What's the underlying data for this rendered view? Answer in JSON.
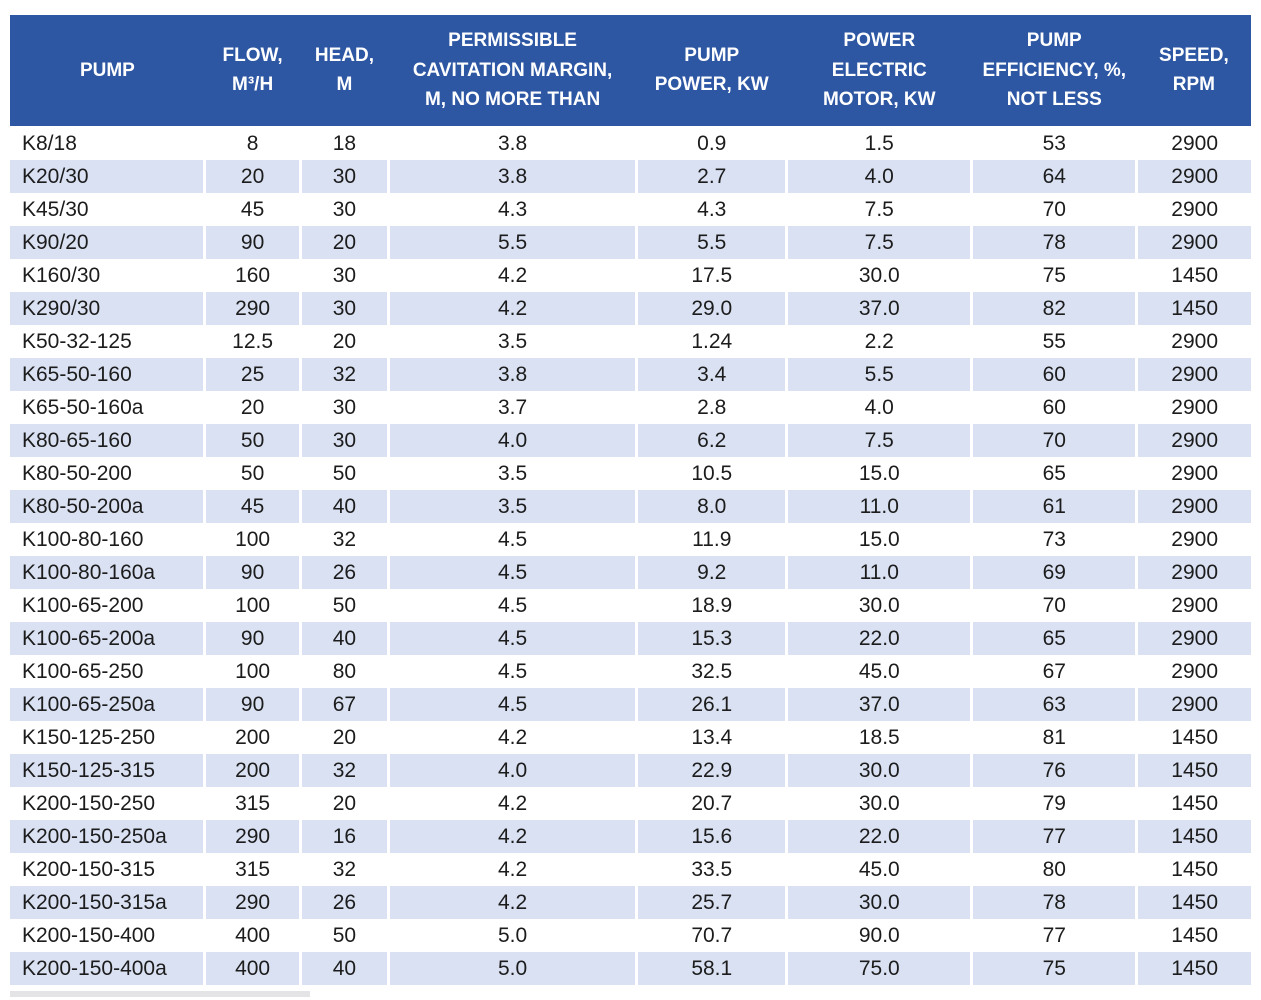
{
  "colors": {
    "header_bg": "#2d56a3",
    "header_text": "#ffffff",
    "row_bg": "#ffffff",
    "row_alt_bg": "#d9e1f2",
    "body_text": "#1c1c1c",
    "separator": "#ffffff"
  },
  "table": {
    "columns": [
      {
        "label": "PUMP",
        "width": "15.7%"
      },
      {
        "label": "FLOW,\nM³/H",
        "width": "7.7%"
      },
      {
        "label": "HEAD,\nM",
        "width": "7.1%"
      },
      {
        "label": "PERMISSIBLE\nCAVITATION MARGIN,\nM, NO MORE THAN",
        "width": "20.0%"
      },
      {
        "label": "PUMP\nPOWER, KW",
        "width": "12.1%"
      },
      {
        "label": "POWER\nELECTRIC\nMOTOR, KW",
        "width": "14.9%"
      },
      {
        "label": "PUMP\nEFFICIENCY, %,\nNOT LESS",
        "width": "13.3%"
      },
      {
        "label": "SPEED,\nRPM",
        "width": "9.2%"
      }
    ],
    "rows": [
      [
        "K8/18",
        "8",
        "18",
        "3.8",
        "0.9",
        "1.5",
        "53",
        "2900"
      ],
      [
        "K20/30",
        "20",
        "30",
        "3.8",
        "2.7",
        "4.0",
        "64",
        "2900"
      ],
      [
        "K45/30",
        "45",
        "30",
        "4.3",
        "4.3",
        "7.5",
        "70",
        "2900"
      ],
      [
        "K90/20",
        "90",
        "20",
        "5.5",
        "5.5",
        "7.5",
        "78",
        "2900"
      ],
      [
        "K160/30",
        "160",
        "30",
        "4.2",
        "17.5",
        "30.0",
        "75",
        "1450"
      ],
      [
        "K290/30",
        "290",
        "30",
        "4.2",
        "29.0",
        "37.0",
        "82",
        "1450"
      ],
      [
        "K50-32-125",
        "12.5",
        "20",
        "3.5",
        "1.24",
        "2.2",
        "55",
        "2900"
      ],
      [
        "K65-50-160",
        "25",
        "32",
        "3.8",
        "3.4",
        "5.5",
        "60",
        "2900"
      ],
      [
        "K65-50-160a",
        "20",
        "30",
        "3.7",
        "2.8",
        "4.0",
        "60",
        "2900"
      ],
      [
        "K80-65-160",
        "50",
        "30",
        "4.0",
        "6.2",
        "7.5",
        "70",
        "2900"
      ],
      [
        "K80-50-200",
        "50",
        "50",
        "3.5",
        "10.5",
        "15.0",
        "65",
        "2900"
      ],
      [
        "K80-50-200a",
        "45",
        "40",
        "3.5",
        "8.0",
        "11.0",
        "61",
        "2900"
      ],
      [
        "K100-80-160",
        "100",
        "32",
        "4.5",
        "11.9",
        "15.0",
        "73",
        "2900"
      ],
      [
        "K100-80-160a",
        "90",
        "26",
        "4.5",
        "9.2",
        "11.0",
        "69",
        "2900"
      ],
      [
        "K100-65-200",
        "100",
        "50",
        "4.5",
        "18.9",
        "30.0",
        "70",
        "2900"
      ],
      [
        "K100-65-200a",
        "90",
        "40",
        "4.5",
        "15.3",
        "22.0",
        "65",
        "2900"
      ],
      [
        "K100-65-250",
        "100",
        "80",
        "4.5",
        "32.5",
        "45.0",
        "67",
        "2900"
      ],
      [
        "K100-65-250a",
        "90",
        "67",
        "4.5",
        "26.1",
        "37.0",
        "63",
        "2900"
      ],
      [
        "K150-125-250",
        "200",
        "20",
        "4.2",
        "13.4",
        "18.5",
        "81",
        "1450"
      ],
      [
        "K150-125-315",
        "200",
        "32",
        "4.0",
        "22.9",
        "30.0",
        "76",
        "1450"
      ],
      [
        "K200-150-250",
        "315",
        "20",
        "4.2",
        "20.7",
        "30.0",
        "79",
        "1450"
      ],
      [
        "K200-150-250a",
        "290",
        "16",
        "4.2",
        "15.6",
        "22.0",
        "77",
        "1450"
      ],
      [
        "K200-150-315",
        "315",
        "32",
        "4.2",
        "33.5",
        "45.0",
        "80",
        "1450"
      ],
      [
        "K200-150-315a",
        "290",
        "26",
        "4.2",
        "25.7",
        "30.0",
        "78",
        "1450"
      ],
      [
        "K200-150-400",
        "400",
        "50",
        "5.0",
        "70.7",
        "90.0",
        "77",
        "1450"
      ],
      [
        "K200-150-400a",
        "400",
        "40",
        "5.0",
        "58.1",
        "75.0",
        "75",
        "1450"
      ]
    ]
  }
}
